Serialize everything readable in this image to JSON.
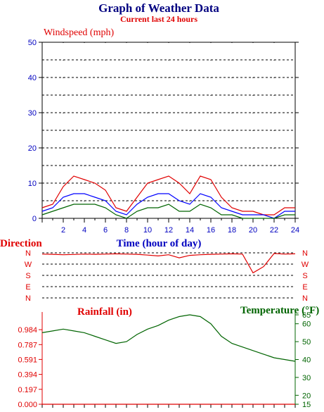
{
  "header": {
    "title": "Graph of Weather Data",
    "subtitle": "Current last 24 hours"
  },
  "colors": {
    "title": "#000080",
    "subtitle": "#e00000",
    "wind_axis": "#0000c0",
    "red": "#e00000",
    "blue": "#0000ff",
    "green": "#006400",
    "grid": "#000000"
  },
  "chart_data": [
    {
      "type": "line",
      "title": "Windspeed (mph)",
      "xlabel": "Time (hour of day)",
      "ylabel": "",
      "xlim": [
        0,
        24
      ],
      "ylim": [
        0,
        50
      ],
      "xticks": [
        "2",
        "4",
        "6",
        "8",
        "10",
        "12",
        "14",
        "16",
        "18",
        "20",
        "22",
        "24"
      ],
      "yticks": [
        "0",
        "10",
        "20",
        "30",
        "40",
        "50"
      ],
      "grid": true,
      "x": [
        0,
        1,
        2,
        3,
        4,
        5,
        6,
        7,
        8,
        9,
        10,
        11,
        12,
        13,
        14,
        15,
        16,
        17,
        18,
        19,
        20,
        21,
        22,
        23,
        24
      ],
      "series": [
        {
          "color": "#e00000",
          "values": [
            3,
            4,
            9,
            12,
            11,
            10,
            8,
            3,
            2,
            6,
            10,
            11,
            12,
            10,
            7,
            12,
            11,
            6,
            3,
            2,
            2,
            1,
            1,
            3,
            3
          ]
        },
        {
          "color": "#0000ff",
          "values": [
            2,
            3,
            6,
            7,
            7,
            6,
            5,
            2,
            1,
            4,
            6,
            7,
            7,
            5,
            4,
            7,
            6,
            3,
            2,
            1,
            1,
            1,
            0,
            2,
            2
          ]
        },
        {
          "color": "#006400",
          "values": [
            1,
            2,
            3,
            4,
            4,
            4,
            3,
            1,
            0,
            2,
            3,
            3,
            4,
            2,
            2,
            4,
            3,
            1,
            1,
            0,
            0,
            0,
            0,
            1,
            1
          ]
        }
      ]
    },
    {
      "type": "line",
      "title": "Direction",
      "ylim": [
        "N",
        "N"
      ],
      "yticks": [
        "N",
        "W",
        "S",
        "E",
        "N"
      ],
      "xlim": [
        0,
        24
      ],
      "x": [
        0,
        1,
        2,
        3,
        4,
        5,
        6,
        7,
        8,
        9,
        10,
        11,
        12,
        13,
        14,
        15,
        16,
        17,
        18,
        19,
        20,
        21,
        22,
        23,
        24
      ],
      "series": [
        {
          "color": "#e00000",
          "values": [
            350,
            348,
            345,
            347,
            350,
            348,
            350,
            352,
            350,
            348,
            342,
            335,
            345,
            320,
            340,
            345,
            348,
            350,
            352,
            350,
            200,
            250,
            355,
            350,
            352
          ]
        }
      ]
    },
    {
      "type": "line",
      "title": "Rainfall (in)",
      "xlim": [
        0,
        24
      ],
      "ylim": [
        0,
        1.18
      ],
      "yticks": [
        "0.000",
        "0.197",
        "0.394",
        "0.591",
        "0.787",
        "0.984"
      ],
      "grid": false,
      "x": [
        0,
        1,
        2,
        3,
        4,
        5,
        6,
        7,
        8,
        9,
        10,
        11,
        12,
        13,
        14,
        15,
        16,
        17,
        18,
        19,
        20,
        21,
        22,
        23,
        24
      ],
      "series": [
        {
          "color": "#e00000",
          "values": [
            0,
            0,
            0,
            0,
            0,
            0,
            0,
            0,
            0,
            0,
            0,
            0,
            0,
            0,
            0,
            0,
            0,
            0,
            0,
            0,
            0,
            0,
            0,
            0,
            0
          ]
        }
      ]
    },
    {
      "type": "line",
      "title": "Temperature (°F)",
      "xlim": [
        0,
        24
      ],
      "ylim": [
        15,
        65
      ],
      "yticks": [
        "15",
        "20",
        "30",
        "40",
        "50",
        "60",
        "65"
      ],
      "x": [
        0,
        1,
        2,
        3,
        4,
        5,
        6,
        7,
        8,
        9,
        10,
        11,
        12,
        13,
        14,
        15,
        16,
        17,
        18,
        19,
        20,
        21,
        22,
        23,
        24
      ],
      "series": [
        {
          "color": "#006400",
          "values": [
            55,
            56,
            57,
            56,
            55,
            53,
            51,
            49,
            50,
            54,
            57,
            59,
            62,
            64,
            65,
            64,
            60,
            53,
            49,
            47,
            45,
            43,
            41,
            40,
            39
          ]
        }
      ]
    }
  ]
}
